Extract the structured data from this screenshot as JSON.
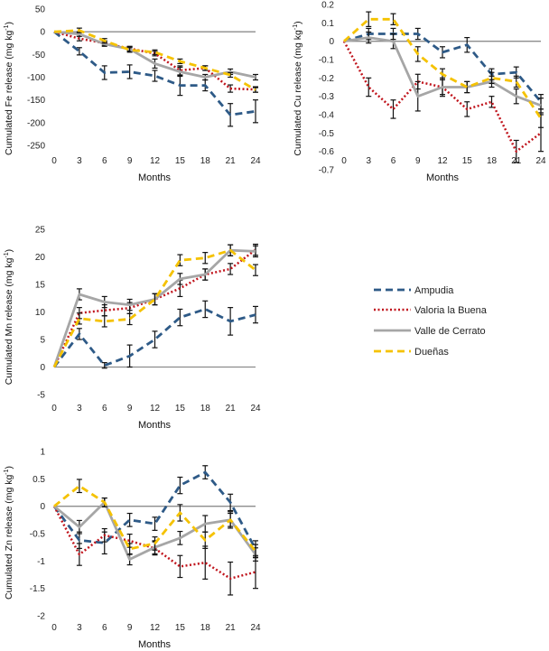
{
  "colors": {
    "Ampudia": "#2e5a87",
    "Valoria la Buena": "#c0141c",
    "Valle de Cerrato": "#a6a6a6",
    "Dueñas": "#f5c200"
  },
  "legend": [
    "Ampudia",
    "Valoria la Buena",
    "Valle de Cerrato",
    "Dueñas"
  ],
  "chart_data": [
    {
      "id": "fe",
      "type": "line",
      "ylabel_main": "Cumulated Fe release (mg kg",
      "ylabel_sup": "-1",
      "ylabel_end": ")",
      "xlabel": "Months",
      "categories": [
        "0",
        "3",
        "6",
        "9",
        "12",
        "15",
        "18",
        "21",
        "24"
      ],
      "x": [
        0,
        3,
        6,
        9,
        12,
        15,
        18,
        21,
        24
      ],
      "ylim": [
        -250,
        50
      ],
      "yticks": [
        50,
        0,
        -50,
        -100,
        -150,
        -200,
        -250
      ],
      "ytick_labels": [
        "50",
        "0",
        "-50",
        "-100",
        "-150",
        "-200",
        "-250"
      ],
      "series": [
        {
          "name": "Ampudia",
          "values": [
            0,
            -43,
            -90,
            -88,
            -97,
            -118,
            -118,
            -183,
            -175
          ],
          "err": [
            0,
            8,
            15,
            15,
            12,
            22,
            12,
            25,
            25
          ]
        },
        {
          "name": "Valoria la Buena",
          "values": [
            0,
            -15,
            -25,
            -37,
            -48,
            -85,
            -80,
            -125,
            -127
          ],
          "err": [
            0,
            5,
            5,
            5,
            5,
            10,
            5,
            8,
            6
          ]
        },
        {
          "name": "Valle de Cerrato",
          "values": [
            0,
            -5,
            -27,
            -38,
            -70,
            -88,
            -100,
            -88,
            -100
          ],
          "err": [
            0,
            5,
            5,
            5,
            10,
            10,
            6,
            6,
            6
          ]
        },
        {
          "name": "Dueñas",
          "values": [
            0,
            3,
            -20,
            -40,
            -45,
            -65,
            -80,
            -95,
            -128
          ],
          "err": [
            0,
            5,
            5,
            5,
            5,
            5,
            5,
            5,
            5
          ]
        }
      ]
    },
    {
      "id": "cu",
      "type": "line",
      "ylabel_main": "Cumulated Cu release (mg kg",
      "ylabel_sup": "-1",
      "ylabel_end": ")",
      "xlabel": "Months",
      "categories": [
        "0",
        "3",
        "6",
        "9",
        "12",
        "15",
        "18",
        "21",
        "24"
      ],
      "x": [
        0,
        3,
        6,
        9,
        12,
        15,
        18,
        21,
        24
      ],
      "ylim": [
        -0.7,
        0.2
      ],
      "yticks": [
        0.2,
        0.1,
        0,
        -0.1,
        -0.2,
        -0.3,
        -0.4,
        -0.5,
        -0.6,
        -0.7
      ],
      "ytick_labels": [
        "0.2",
        "0.1",
        "0",
        "-0.1",
        "-0.2",
        "-0.3",
        "-0.4",
        "-0.5",
        "-0.6",
        "-0.7"
      ],
      "series": [
        {
          "name": "Ampudia",
          "values": [
            0,
            0.04,
            0.04,
            0.04,
            -0.06,
            -0.02,
            -0.18,
            -0.17,
            -0.33
          ],
          "err": [
            0,
            0.03,
            0.03,
            0.03,
            0.03,
            0.04,
            0.03,
            0.03,
            0.04
          ]
        },
        {
          "name": "Valoria la Buena",
          "values": [
            0,
            -0.25,
            -0.37,
            -0.22,
            -0.25,
            -0.37,
            -0.33,
            -0.6,
            -0.5
          ],
          "err": [
            0,
            0.05,
            0.05,
            0.04,
            0.05,
            0.04,
            0.03,
            0.06,
            0.1
          ]
        },
        {
          "name": "Valle de Cerrato",
          "values": [
            0,
            0.02,
            0,
            -0.3,
            -0.25,
            -0.25,
            -0.22,
            -0.3,
            -0.35
          ],
          "err": [
            0,
            0.03,
            0.04,
            0.08,
            0.04,
            0.03,
            0.03,
            0.04,
            0.04
          ]
        },
        {
          "name": "Dueñas",
          "values": [
            0,
            0.12,
            0.12,
            -0.07,
            -0.18,
            -0.25,
            -0.2,
            -0.22,
            -0.42
          ],
          "err": [
            0,
            0.04,
            0.03,
            0.04,
            0.03,
            0.03,
            0.03,
            0.03,
            0.05
          ]
        }
      ]
    },
    {
      "id": "mn",
      "type": "line",
      "ylabel_main": "Cumulated Mn release (mg kg",
      "ylabel_sup": "-1",
      "ylabel_end": ")",
      "xlabel": "Months",
      "categories": [
        "0",
        "3",
        "6",
        "9",
        "12",
        "15",
        "18",
        "21",
        "24"
      ],
      "x": [
        0,
        3,
        6,
        9,
        12,
        15,
        18,
        21,
        24
      ],
      "ylim": [
        -5,
        25
      ],
      "yticks": [
        25,
        20,
        15,
        10,
        5,
        0,
        -5
      ],
      "ytick_labels": [
        "25",
        "20",
        "15",
        "10",
        "5",
        "0",
        "-5"
      ],
      "series": [
        {
          "name": "Ampudia",
          "values": [
            0,
            6,
            0.3,
            2,
            5,
            9,
            10.5,
            8.3,
            9.5
          ],
          "err": [
            0,
            1,
            0.5,
            2,
            1.5,
            1.5,
            1.5,
            2.5,
            1.5
          ]
        },
        {
          "name": "Valoria la Buena",
          "values": [
            0,
            9.8,
            10.3,
            10.7,
            12.3,
            14.3,
            16.8,
            17.8,
            21.3
          ],
          "err": [
            0,
            1,
            1,
            1,
            1,
            1.5,
            1,
            1,
            1
          ]
        },
        {
          "name": "Valle de Cerrato",
          "values": [
            0,
            13.2,
            11.8,
            11.3,
            12.3,
            16,
            16.8,
            21.2,
            21
          ],
          "err": [
            0,
            1,
            1,
            1,
            1,
            1,
            1,
            1,
            1
          ]
        },
        {
          "name": "Dueñas",
          "values": [
            0,
            8.8,
            8.3,
            8.7,
            12.3,
            19.4,
            19.8,
            21.2,
            17.6
          ],
          "err": [
            0,
            1,
            1,
            1,
            1,
            1,
            1,
            1,
            1
          ]
        }
      ]
    },
    {
      "id": "zn",
      "type": "line",
      "ylabel_main": "Cumulated Zn release (mg kg",
      "ylabel_sup": "-1",
      "ylabel_end": ")",
      "xlabel": "Months",
      "categories": [
        "0",
        "3",
        "6",
        "9",
        "12",
        "15",
        "18",
        "21",
        "24"
      ],
      "x": [
        0,
        3,
        6,
        9,
        12,
        15,
        18,
        21,
        24
      ],
      "ylim": [
        -2,
        1
      ],
      "yticks": [
        1,
        0.5,
        0,
        -0.5,
        -1,
        -1.5,
        -2
      ],
      "ytick_labels": [
        "1",
        "0.5",
        "0",
        "-0.5",
        "-1",
        "-1.5",
        "-2"
      ],
      "series": [
        {
          "name": "Ampudia",
          "values": [
            0,
            -0.62,
            -0.67,
            -0.25,
            -0.32,
            0.38,
            0.62,
            0.07,
            -0.78
          ],
          "err": [
            0,
            0.15,
            0.2,
            0.12,
            0.12,
            0.15,
            0.12,
            0.15,
            0.15
          ]
        },
        {
          "name": "Valoria la Buena",
          "values": [
            0,
            -0.88,
            -0.53,
            -0.63,
            -0.77,
            -1.1,
            -1.03,
            -1.32,
            -1.2
          ],
          "err": [
            0,
            0.2,
            0.12,
            0.12,
            0.12,
            0.2,
            0.3,
            0.3,
            0.3
          ]
        },
        {
          "name": "Valle de Cerrato",
          "values": [
            0,
            -0.38,
            0.07,
            -0.97,
            -0.75,
            -0.58,
            -0.32,
            -0.25,
            -0.88
          ],
          "err": [
            0,
            0.12,
            0.08,
            0.1,
            0.12,
            0.12,
            0.15,
            0.15,
            0.12
          ]
        },
        {
          "name": "Dueñas",
          "values": [
            0,
            0.37,
            0.07,
            -0.78,
            -0.68,
            -0.12,
            -0.62,
            -0.25,
            -0.82
          ],
          "err": [
            0,
            0.12,
            0.08,
            0.1,
            0.12,
            0.15,
            0.15,
            0.12,
            0.12
          ]
        }
      ]
    }
  ]
}
